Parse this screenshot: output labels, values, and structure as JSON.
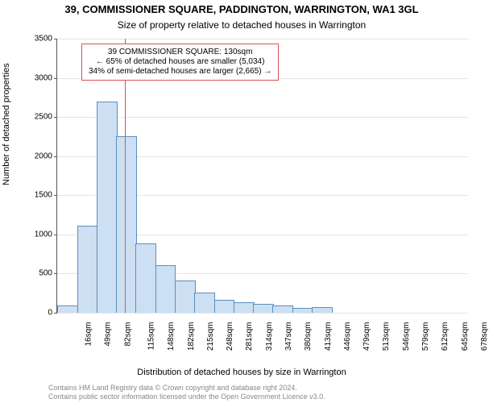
{
  "chart": {
    "type": "histogram",
    "title_line1": "39, COMMISSIONER SQUARE, PADDINGTON, WARRINGTON, WA1 3GL",
    "title_line2": "Size of property relative to detached houses in Warrington",
    "title_fontsize": 13,
    "subtitle_fontsize": 12,
    "ylabel": "Number of detached properties",
    "xlabel": "Distribution of detached houses by size in Warrington",
    "axis_label_fontsize": 11,
    "tick_fontsize": 10,
    "background_color": "#ffffff",
    "grid_color": "#e5e5e5",
    "bar_fill": "#cddff2",
    "bar_edge": "#5a8fbf",
    "ylim": [
      0,
      3500
    ],
    "ytick_step": 500,
    "yticks": [
      0,
      500,
      1000,
      1500,
      2000,
      2500,
      3000,
      3500
    ],
    "xtick_labels": [
      "16sqm",
      "49sqm",
      "82sqm",
      "115sqm",
      "148sqm",
      "182sqm",
      "215sqm",
      "248sqm",
      "281sqm",
      "314sqm",
      "347sqm",
      "380sqm",
      "413sqm",
      "446sqm",
      "479sqm",
      "513sqm",
      "546sqm",
      "579sqm",
      "612sqm",
      "645sqm",
      "678sqm"
    ],
    "values": [
      80,
      1100,
      2690,
      2240,
      880,
      600,
      400,
      250,
      150,
      120,
      100,
      80,
      50,
      60,
      0,
      0,
      0,
      0,
      0,
      0,
      0
    ],
    "vrule_index": 3.45,
    "vrule_color": "#d9534f",
    "annotation": {
      "lines": [
        "39 COMMISSIONER SQUARE: 130sqm",
        "← 65% of detached houses are smaller (5,034)",
        "34% of semi-detached houses are larger (2,665) →"
      ],
      "border_color": "#d9534f",
      "fontsize": 10
    },
    "footnote_line1": "Contains HM Land Registry data © Crown copyright and database right 2024.",
    "footnote_line2": "Contains public sector information licensed under the Open Government Licence v3.0.",
    "footnote_fontsize": 9,
    "footnote_color": "#888888"
  }
}
